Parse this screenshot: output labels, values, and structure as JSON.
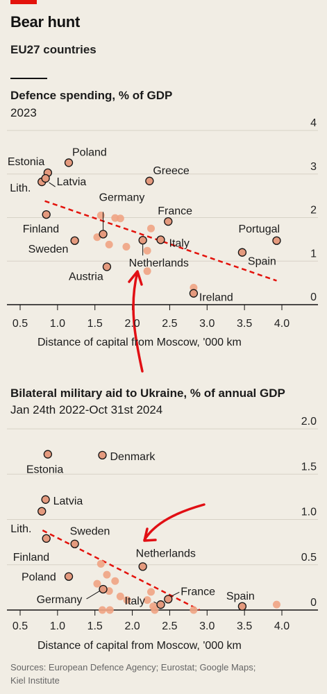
{
  "header": {
    "title": "Bear hunt",
    "subtitle": "EU27 countries"
  },
  "chart_data": [
    {
      "type": "scatter",
      "title": "Defence spending, % of GDP",
      "subtitle": "2023",
      "xlabel": "Distance of capital from Moscow, '000 km",
      "xlim": [
        0.5,
        4.0
      ],
      "ylim": [
        0,
        4
      ],
      "x_ticks": [
        "0.5",
        "1.0",
        "1.5",
        "2.0",
        "2.5",
        "3.0",
        "3.5",
        "4.0"
      ],
      "y_ticks": [
        "0",
        "1",
        "2",
        "3",
        "4"
      ],
      "grid": "horizontal",
      "trend": {
        "x": [
          0.83,
          3.93
        ],
        "y": [
          2.38,
          0.55
        ]
      },
      "labelled_points": [
        {
          "label": "Estonia",
          "x": 0.87,
          "y": 3.03
        },
        {
          "label": "Poland",
          "x": 1.15,
          "y": 3.26
        },
        {
          "label": "Lith.",
          "x": 0.79,
          "y": 2.82
        },
        {
          "label": "Latvia",
          "x": 0.84,
          "y": 2.9
        },
        {
          "label": "Greece",
          "x": 2.23,
          "y": 2.84
        },
        {
          "label": "Finland",
          "x": 0.85,
          "y": 2.07
        },
        {
          "label": "Germany",
          "x": 1.61,
          "y": 1.62
        },
        {
          "label": "France",
          "x": 2.48,
          "y": 1.91
        },
        {
          "label": "Portugal",
          "x": 3.93,
          "y": 1.47
        },
        {
          "label": "Sweden",
          "x": 1.23,
          "y": 1.47
        },
        {
          "label": "Italy",
          "x": 2.38,
          "y": 1.49
        },
        {
          "label": "Netherlands",
          "x": 2.14,
          "y": 1.48
        },
        {
          "label": "Spain",
          "x": 3.47,
          "y": 1.2
        },
        {
          "label": "Austria",
          "x": 1.66,
          "y": 0.87
        },
        {
          "label": "Ireland",
          "x": 2.82,
          "y": 0.26
        }
      ],
      "other_points": [
        {
          "x": 1.58,
          "y": 2.05
        },
        {
          "x": 1.77,
          "y": 1.99
        },
        {
          "x": 1.84,
          "y": 1.98
        },
        {
          "x": 1.53,
          "y": 1.55
        },
        {
          "x": 1.69,
          "y": 1.38
        },
        {
          "x": 1.92,
          "y": 1.33
        },
        {
          "x": 2.25,
          "y": 1.75
        },
        {
          "x": 2.2,
          "y": 1.24
        },
        {
          "x": 2.2,
          "y": 0.77
        },
        {
          "x": 2.82,
          "y": 0.39
        }
      ]
    },
    {
      "type": "scatter",
      "title": "Bilateral military aid to Ukraine, % of annual GDP",
      "subtitle": "Jan 24th 2022-Oct 31st 2024",
      "xlabel": "Distance of capital from Moscow, '000 km",
      "xlim": [
        0.5,
        4.0
      ],
      "ylim": [
        0,
        2.0
      ],
      "x_ticks": [
        "0.5",
        "1.0",
        "1.5",
        "2.0",
        "2.5",
        "3.0",
        "3.5",
        "4.0"
      ],
      "y_ticks": [
        "0",
        "0.5",
        "1.0",
        "1.5",
        "2.0"
      ],
      "grid": "horizontal",
      "trend": {
        "x": [
          0.8,
          2.9
        ],
        "y": [
          0.88,
          0.0
        ]
      },
      "labelled_points": [
        {
          "label": "Estonia",
          "x": 0.87,
          "y": 1.72
        },
        {
          "label": "Denmark",
          "x": 1.6,
          "y": 1.71
        },
        {
          "label": "Latvia",
          "x": 0.84,
          "y": 1.22
        },
        {
          "label": "Lith.",
          "x": 0.79,
          "y": 1.09
        },
        {
          "label": "Sweden",
          "x": 1.23,
          "y": 0.73
        },
        {
          "label": "Finland",
          "x": 0.85,
          "y": 0.79
        },
        {
          "label": "Netherlands",
          "x": 2.14,
          "y": 0.48
        },
        {
          "label": "Poland",
          "x": 1.15,
          "y": 0.37
        },
        {
          "label": "Germany",
          "x": 1.61,
          "y": 0.23
        },
        {
          "label": "France",
          "x": 2.48,
          "y": 0.12
        },
        {
          "label": "Italy",
          "x": 2.38,
          "y": 0.06
        },
        {
          "label": "Spain",
          "x": 3.47,
          "y": 0.04
        }
      ],
      "other_points": [
        {
          "x": 1.58,
          "y": 0.51
        },
        {
          "x": 1.66,
          "y": 0.39
        },
        {
          "x": 1.77,
          "y": 0.32
        },
        {
          "x": 1.53,
          "y": 0.29
        },
        {
          "x": 1.69,
          "y": 0.21
        },
        {
          "x": 1.84,
          "y": 0.15
        },
        {
          "x": 2.25,
          "y": 0.2
        },
        {
          "x": 2.2,
          "y": 0.11
        },
        {
          "x": 1.93,
          "y": 0.11
        },
        {
          "x": 2.28,
          "y": 0.04
        },
        {
          "x": 3.93,
          "y": 0.06
        },
        {
          "x": 1.6,
          "y": 0.0
        },
        {
          "x": 1.7,
          "y": 0.0
        },
        {
          "x": 2.3,
          "y": 0.0
        },
        {
          "x": 2.82,
          "y": 0.0
        }
      ]
    }
  ],
  "sources": "Sources: European Defence Agency; Eurostat; Google Maps; Kiel Institute",
  "colors": {
    "background": "#f1ede4",
    "labelled_fill": "#e49a7e",
    "other_fill": "#f0a383",
    "trend": "#e3120b",
    "annotation_arrow": "#e10f14",
    "grid": "#d7d2c6",
    "axis": "#121212",
    "brand": "#e3120b"
  }
}
